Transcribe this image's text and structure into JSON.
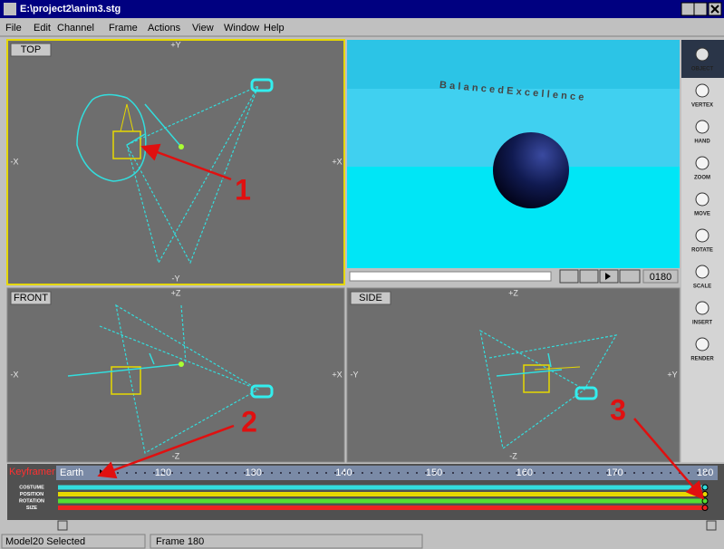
{
  "window": {
    "title": "E:\\project2\\anim3.stg"
  },
  "menu": [
    "File",
    "Edit",
    "Channel",
    "Frame",
    "Actions",
    "View",
    "Window",
    "Help"
  ],
  "viewports": [
    {
      "label": "TOP",
      "axes": {
        "top": "+Y",
        "bottom": "-Y",
        "left": "-X",
        "right": "+X"
      }
    },
    {
      "label": "FRONT",
      "axes": {
        "top": "+Z",
        "bottom": "-Z",
        "left": "-X",
        "right": "+X"
      }
    },
    {
      "label": "SIDE",
      "axes": {
        "top": "+Z",
        "bottom": "-Z",
        "left": "-Y",
        "right": "+Y"
      }
    }
  ],
  "camera": {
    "text": "BalancedExcellence",
    "frame": "0180"
  },
  "tools": [
    "OBJECT",
    "VERTEX",
    "HAND",
    "ZOOM",
    "MOVE",
    "ROTATE",
    "SCALE",
    "INSERT",
    "RENDER"
  ],
  "timeline": {
    "label": "Keyframer",
    "object": "Earth",
    "ticks": [
      "120",
      "130",
      "140",
      "150",
      "160",
      "170",
      "180"
    ],
    "channels": [
      "COSTUME",
      "POSITION",
      "ROTATION",
      "SIZE"
    ]
  },
  "status": [
    "Model20 Selected",
    "Frame 180"
  ],
  "annotations": [
    "1",
    "2",
    "3"
  ]
}
